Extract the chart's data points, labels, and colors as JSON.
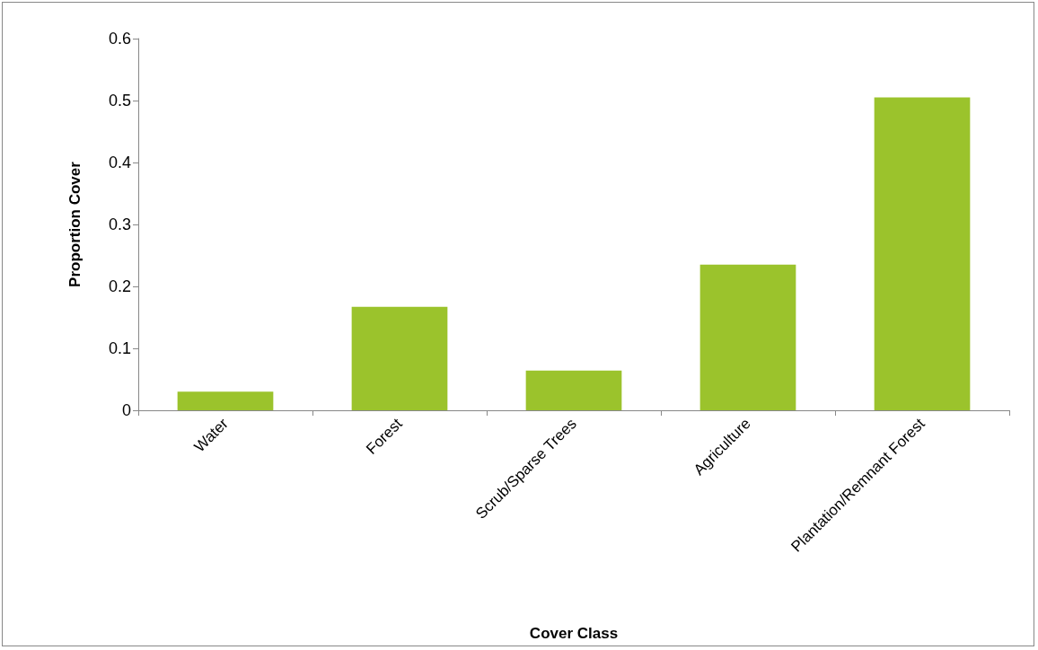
{
  "chart_data": {
    "type": "bar",
    "xlabel": "Cover Class",
    "ylabel": "Proportion Cover",
    "categories": [
      "Water",
      "Forest",
      "Scrub/Sparse Trees",
      "Agriculture",
      "Plantation/Remnant Forest"
    ],
    "values": [
      0.03,
      0.167,
      0.064,
      0.235,
      0.505
    ],
    "color": "#9bc32c",
    "ylim": [
      0,
      0.6
    ],
    "yticks": [
      0,
      0.1,
      0.2,
      0.3,
      0.4,
      0.5,
      0.6
    ],
    "grid": false
  }
}
